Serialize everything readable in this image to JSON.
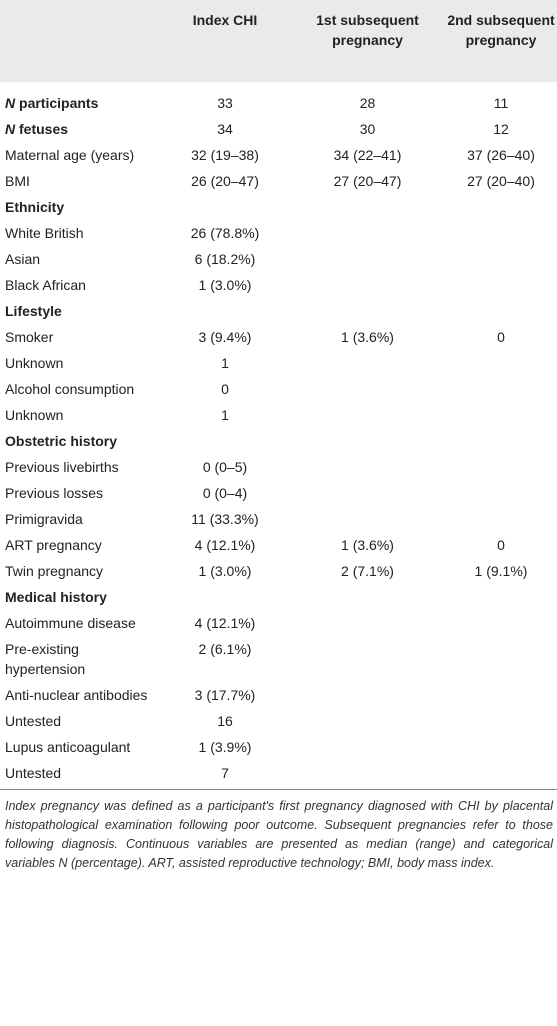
{
  "header": {
    "col1": "",
    "col2": "Index CHI",
    "col3": "1st subsequent pregnancy",
    "col4": "2nd subsequent pregnancy"
  },
  "rows": [
    {
      "kind": "strong",
      "n_italic": "N",
      "label": " participants",
      "values": [
        "33",
        "28",
        "11"
      ]
    },
    {
      "kind": "strong",
      "n_italic": "N",
      "label": " fetuses",
      "values": [
        "34",
        "30",
        "12"
      ]
    },
    {
      "kind": "data",
      "label": "Maternal age (years)",
      "values": [
        "32 (19–38)",
        "34 (22–41)",
        "37 (26–40)"
      ]
    },
    {
      "kind": "data",
      "label": "BMI",
      "values": [
        "26 (20–47)",
        "27 (20–47)",
        "27 (20–40)"
      ]
    },
    {
      "kind": "section",
      "label": "Ethnicity"
    },
    {
      "kind": "data",
      "label": "White British",
      "values": [
        "26 (78.8%)",
        "",
        ""
      ]
    },
    {
      "kind": "data",
      "label": "Asian",
      "values": [
        "6 (18.2%)",
        "",
        ""
      ]
    },
    {
      "kind": "data",
      "label": "Black African",
      "values": [
        "1 (3.0%)",
        "",
        ""
      ]
    },
    {
      "kind": "section",
      "label": "Lifestyle"
    },
    {
      "kind": "data",
      "label": "Smoker",
      "values": [
        "3 (9.4%)",
        "1 (3.6%)",
        "0"
      ]
    },
    {
      "kind": "data",
      "label": "Unknown",
      "values": [
        "1",
        "",
        ""
      ]
    },
    {
      "kind": "data",
      "label": "Alcohol consumption",
      "values": [
        "0",
        "",
        ""
      ]
    },
    {
      "kind": "data",
      "label": "Unknown",
      "values": [
        "1",
        "",
        ""
      ]
    },
    {
      "kind": "section",
      "label": "Obstetric history"
    },
    {
      "kind": "data",
      "label": "Previous livebirths",
      "values": [
        "0 (0–5)",
        "",
        ""
      ]
    },
    {
      "kind": "data",
      "label": "Previous losses",
      "values": [
        "0 (0–4)",
        "",
        ""
      ]
    },
    {
      "kind": "data",
      "label": "Primigravida",
      "values": [
        "11 (33.3%)",
        "",
        ""
      ]
    },
    {
      "kind": "data",
      "label": "ART pregnancy",
      "values": [
        "4 (12.1%)",
        "1 (3.6%)",
        "0"
      ]
    },
    {
      "kind": "data",
      "label": "Twin pregnancy",
      "values": [
        "1 (3.0%)",
        "2 (7.1%)",
        "1 (9.1%)"
      ]
    },
    {
      "kind": "section",
      "label": "Medical history"
    },
    {
      "kind": "data",
      "label": "Autoimmune disease",
      "values": [
        "4 (12.1%)",
        "",
        ""
      ]
    },
    {
      "kind": "data",
      "label": "Pre-existing hypertension",
      "values": [
        "2 (6.1%)",
        "",
        ""
      ]
    },
    {
      "kind": "data",
      "label": "Anti-nuclear antibodies",
      "values": [
        "3 (17.7%)",
        "",
        ""
      ]
    },
    {
      "kind": "data",
      "label": "Untested",
      "values": [
        "16",
        "",
        ""
      ]
    },
    {
      "kind": "data",
      "label": "Lupus anticoagulant",
      "values": [
        "1 (3.9%)",
        "",
        ""
      ]
    },
    {
      "kind": "data",
      "label": "Untested",
      "values": [
        "7",
        "",
        ""
      ]
    }
  ],
  "footnote": "Index pregnancy was defined as a participant's first pregnancy diagnosed with CHI by placental histopathological examination following poor outcome. Subsequent pregnancies refer to those following diagnosis. Continuous variables are presented as median (range) and categorical variables N (percentage). ART, assisted reproductive technology; BMI, body mass index."
}
